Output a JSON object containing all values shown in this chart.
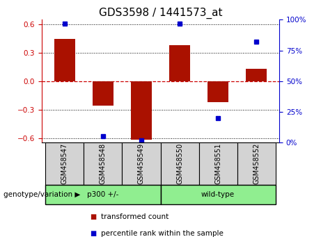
{
  "title": "GDS3598 / 1441573_at",
  "samples": [
    "GSM458547",
    "GSM458548",
    "GSM458549",
    "GSM458550",
    "GSM458551",
    "GSM458552"
  ],
  "bar_values": [
    0.45,
    -0.26,
    -0.62,
    0.38,
    -0.22,
    0.13
  ],
  "percentile_values": [
    97,
    5,
    2,
    97,
    20,
    82
  ],
  "bar_color": "#aa1100",
  "dot_color": "#0000cc",
  "ylim": [
    -0.65,
    0.65
  ],
  "y_left_ticks": [
    -0.6,
    -0.3,
    0.0,
    0.3,
    0.6
  ],
  "y_right_ticks": [
    0,
    25,
    50,
    75,
    100
  ],
  "group1_label": "p300 +/-",
  "group2_label": "wild-type",
  "group_color": "#90ee90",
  "sample_box_color": "#d3d3d3",
  "genotype_label": "genotype/variation",
  "legend_bar_label": "transformed count",
  "legend_dot_label": "percentile rank within the sample",
  "hline_color": "#cc0000",
  "grid_color": "#000000",
  "title_fontsize": 11,
  "tick_fontsize": 7.5,
  "right_axis_color": "#0000cc",
  "left_axis_color": "#cc0000"
}
